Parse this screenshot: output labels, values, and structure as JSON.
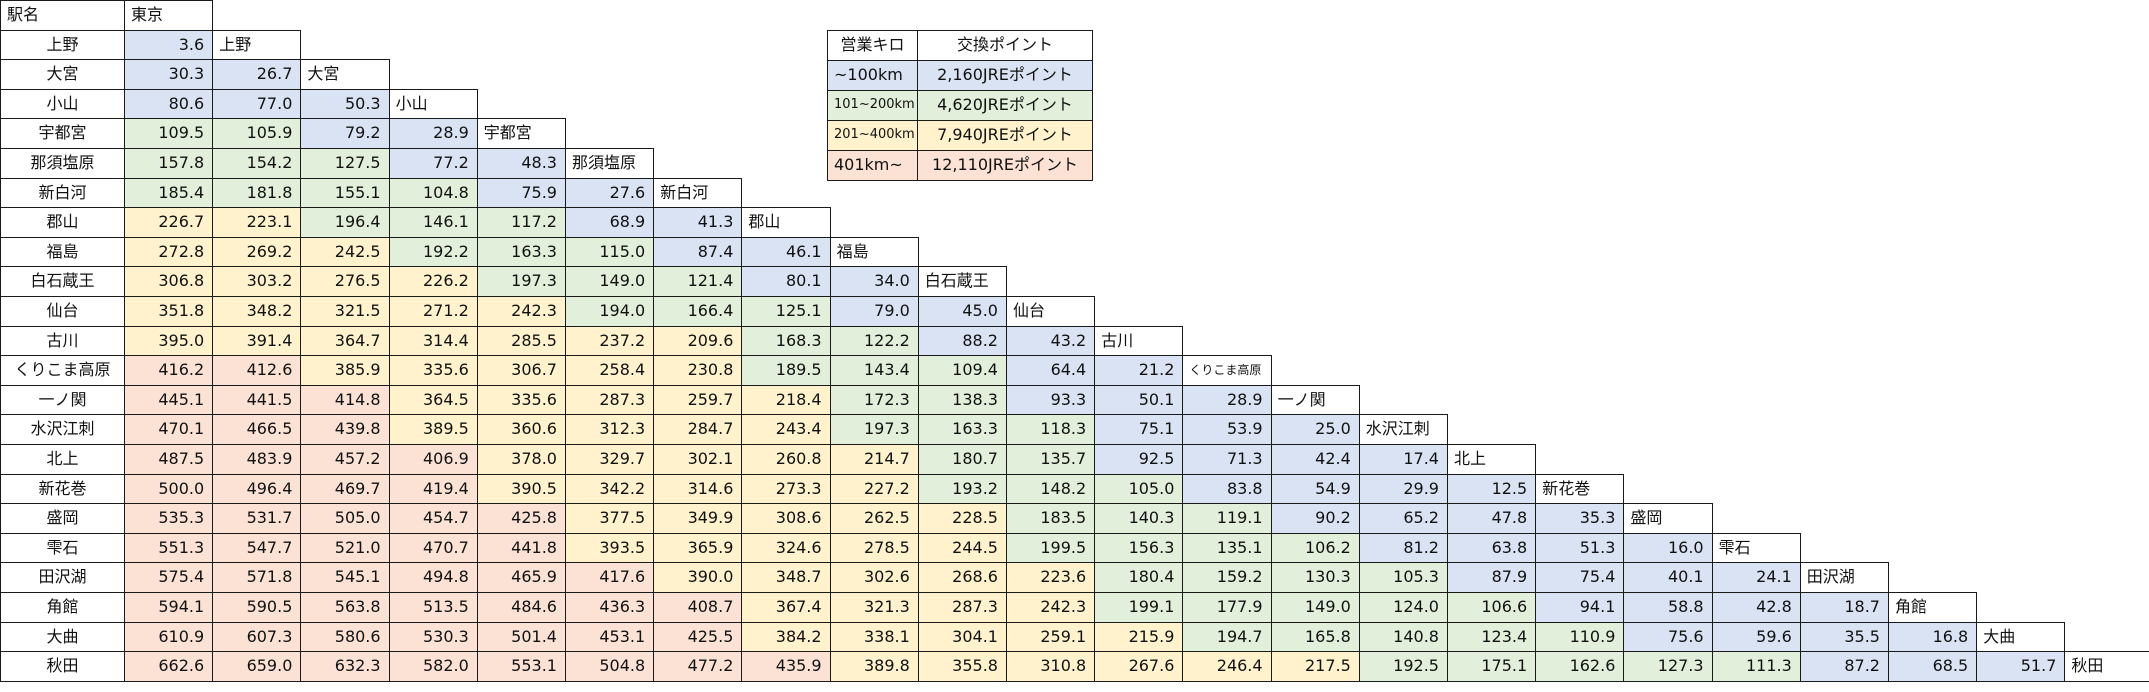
{
  "corner_label": "駅名",
  "stations": [
    "東京",
    "上野",
    "大宮",
    "小山",
    "宇都宮",
    "那須塩原",
    "新白河",
    "郡山",
    "福島",
    "白石蔵王",
    "仙台",
    "古川",
    "くりこま高原",
    "一ノ関",
    "水沢江刺",
    "北上",
    "新花巻",
    "盛岡",
    "雫石",
    "田沢湖",
    "角館",
    "大曲",
    "秋田"
  ],
  "distances": [
    [
      3.6
    ],
    [
      30.3,
      26.7
    ],
    [
      80.6,
      77.0,
      50.3
    ],
    [
      109.5,
      105.9,
      79.2,
      28.9
    ],
    [
      157.8,
      154.2,
      127.5,
      77.2,
      48.3
    ],
    [
      185.4,
      181.8,
      155.1,
      104.8,
      75.9,
      27.6
    ],
    [
      226.7,
      223.1,
      196.4,
      146.1,
      117.2,
      68.9,
      41.3
    ],
    [
      272.8,
      269.2,
      242.5,
      192.2,
      163.3,
      115.0,
      87.4,
      46.1
    ],
    [
      306.8,
      303.2,
      276.5,
      226.2,
      197.3,
      149.0,
      121.4,
      80.1,
      34.0
    ],
    [
      351.8,
      348.2,
      321.5,
      271.2,
      242.3,
      194.0,
      166.4,
      125.1,
      79.0,
      45.0
    ],
    [
      395.0,
      391.4,
      364.7,
      314.4,
      285.5,
      237.2,
      209.6,
      168.3,
      122.2,
      88.2,
      43.2
    ],
    [
      416.2,
      412.6,
      385.9,
      335.6,
      306.7,
      258.4,
      230.8,
      189.5,
      143.4,
      109.4,
      64.4,
      21.2
    ],
    [
      445.1,
      441.5,
      414.8,
      364.5,
      335.6,
      287.3,
      259.7,
      218.4,
      172.3,
      138.3,
      93.3,
      50.1,
      28.9
    ],
    [
      470.1,
      466.5,
      439.8,
      389.5,
      360.6,
      312.3,
      284.7,
      243.4,
      197.3,
      163.3,
      118.3,
      75.1,
      53.9,
      25.0
    ],
    [
      487.5,
      483.9,
      457.2,
      406.9,
      378.0,
      329.7,
      302.1,
      260.8,
      214.7,
      180.7,
      135.7,
      92.5,
      71.3,
      42.4,
      17.4
    ],
    [
      500.0,
      496.4,
      469.7,
      419.4,
      390.5,
      342.2,
      314.6,
      273.3,
      227.2,
      193.2,
      148.2,
      105.0,
      83.8,
      54.9,
      29.9,
      12.5
    ],
    [
      535.3,
      531.7,
      505.0,
      454.7,
      425.8,
      377.5,
      349.9,
      308.6,
      262.5,
      228.5,
      183.5,
      140.3,
      119.1,
      90.2,
      65.2,
      47.8,
      35.3
    ],
    [
      551.3,
      547.7,
      521.0,
      470.7,
      441.8,
      393.5,
      365.9,
      324.6,
      278.5,
      244.5,
      199.5,
      156.3,
      135.1,
      106.2,
      81.2,
      63.8,
      51.3,
      16.0
    ],
    [
      575.4,
      571.8,
      545.1,
      494.8,
      465.9,
      417.6,
      390.0,
      348.7,
      302.6,
      268.6,
      223.6,
      180.4,
      159.2,
      130.3,
      105.3,
      87.9,
      75.4,
      40.1,
      24.1
    ],
    [
      594.1,
      590.5,
      563.8,
      513.5,
      484.6,
      436.3,
      408.7,
      367.4,
      321.3,
      287.3,
      242.3,
      199.1,
      177.9,
      149.0,
      124.0,
      106.6,
      94.1,
      58.8,
      42.8,
      18.7
    ],
    [
      610.9,
      607.3,
      580.6,
      530.3,
      501.4,
      453.1,
      425.5,
      384.2,
      338.1,
      304.1,
      259.1,
      215.9,
      194.7,
      165.8,
      140.8,
      123.4,
      110.9,
      75.6,
      59.6,
      35.5,
      16.8
    ],
    [
      662.6,
      659.0,
      632.3,
      582.0,
      553.1,
      504.8,
      477.2,
      435.9,
      389.8,
      355.8,
      310.8,
      267.6,
      246.4,
      217.5,
      192.5,
      175.1,
      162.6,
      127.3,
      111.3,
      87.2,
      68.5,
      51.7
    ]
  ],
  "legend": {
    "header": [
      "営業キロ",
      "交換ポイント"
    ],
    "rows": [
      {
        "range": "~100km",
        "points": "2,160JREポイント",
        "color": "#dae3f3"
      },
      {
        "range": "101~200km",
        "points": "4,620JREポイント",
        "color": "#e2efda"
      },
      {
        "range": "201~400km",
        "points": "7,940JREポイント",
        "color": "#fff2cc"
      },
      {
        "range": "401km~",
        "points": "12,110JREポイント",
        "color": "#fbe2d5"
      }
    ]
  }
}
